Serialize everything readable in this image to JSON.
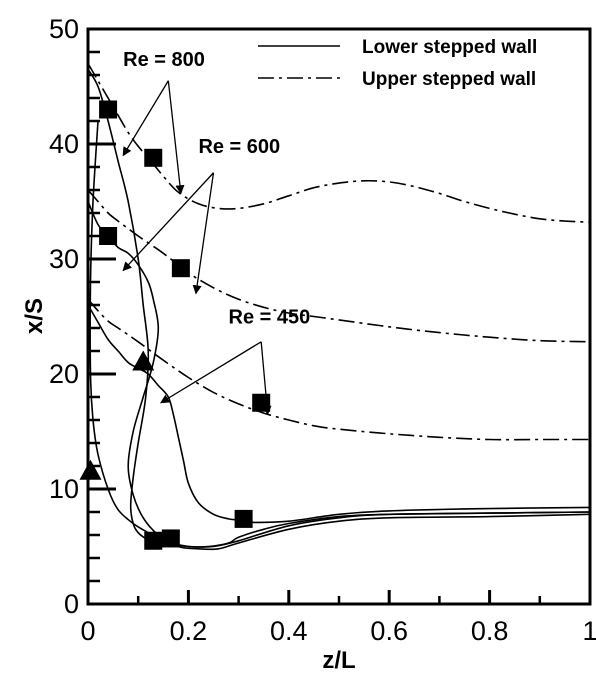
{
  "chart_data": {
    "type": "line",
    "xlabel": "z/L",
    "ylabel": "x/S",
    "xlim": [
      0,
      1
    ],
    "ylim": [
      0,
      50
    ],
    "x_ticks": [
      "0",
      "0.2",
      "0.4",
      "0.6",
      "0.8",
      "1"
    ],
    "y_ticks": [
      "0",
      "10",
      "20",
      "30",
      "40",
      "50"
    ],
    "legend": {
      "position": "top-right",
      "entries": [
        {
          "label": "Lower stepped wall",
          "style": "solid"
        },
        {
          "label": "Upper stepped wall",
          "style": "dash-dot"
        }
      ]
    },
    "series": [
      {
        "style": "solid",
        "group": "Re = 800",
        "x": [
          0.0,
          0.02,
          0.04,
          0.06,
          0.08,
          0.1,
          0.11,
          0.12,
          0.115,
          0.1,
          0.09,
          0.085,
          0.09,
          0.1,
          0.12,
          0.15,
          0.2,
          0.25,
          0.3,
          0.4,
          0.5,
          0.6,
          0.8,
          1.0
        ],
        "y": [
          46.5,
          45,
          42,
          38.5,
          35,
          30,
          26,
          22,
          18,
          14,
          11,
          8.5,
          7,
          6.2,
          5.6,
          5.3,
          5.0,
          5.0,
          5.5,
          6.8,
          7.5,
          7.8,
          7.9,
          8.0
        ]
      },
      {
        "style": "solid",
        "group": "Re = 600",
        "x": [
          0.0,
          0.02,
          0.04,
          0.06,
          0.08,
          0.1,
          0.12,
          0.13,
          0.14,
          0.13,
          0.11,
          0.09,
          0.08,
          0.09,
          0.11,
          0.14,
          0.18,
          0.22,
          0.26,
          0.3,
          0.4,
          0.5,
          0.6,
          0.8,
          1.0
        ],
        "y": [
          35,
          33,
          32,
          31,
          30.5,
          29.5,
          28,
          26.5,
          24,
          21,
          18,
          15,
          12,
          9.5,
          7.5,
          6.0,
          5.0,
          4.8,
          4.8,
          5.3,
          6.5,
          7.2,
          7.5,
          7.6,
          7.8
        ]
      },
      {
        "style": "solid",
        "group": "Re = 450",
        "x": [
          0.0,
          0.02,
          0.04,
          0.06,
          0.08,
          0.1,
          0.12,
          0.14,
          0.16,
          0.17,
          0.18,
          0.19,
          0.2,
          0.22,
          0.25,
          0.28,
          0.3,
          0.33,
          0.4,
          0.5,
          0.6,
          0.8,
          1.0
        ],
        "y": [
          26,
          24.5,
          23,
          22,
          21,
          20.5,
          20,
          19,
          18,
          16.5,
          14.5,
          12.5,
          10.5,
          8.8,
          7.8,
          7.4,
          7.3,
          7.1,
          7.2,
          7.8,
          8.1,
          8.3,
          8.4
        ]
      },
      {
        "style": "solid",
        "group": "",
        "x": [
          0.02,
          0.01,
          0.005,
          0.005,
          0.01,
          0.02,
          0.04,
          0.06,
          0.09,
          0.12,
          0.15,
          0.2,
          0.24,
          0.28,
          0.3,
          0.35,
          0.4,
          0.5,
          0.6,
          0.8,
          1.0
        ],
        "y": [
          42,
          35,
          28,
          20,
          16,
          13,
          10,
          8.2,
          7.0,
          6.2,
          5.5,
          5.0,
          5.0,
          5.3,
          5.8,
          6.5,
          7.0,
          7.6,
          7.8,
          7.9,
          8.0
        ]
      },
      {
        "style": "dash-dot",
        "group": "Re = 800",
        "x": [
          0.0,
          0.02,
          0.04,
          0.06,
          0.08,
          0.1,
          0.12,
          0.15,
          0.18,
          0.22,
          0.26,
          0.3,
          0.35,
          0.4,
          0.45,
          0.5,
          0.55,
          0.6,
          0.65,
          0.7,
          0.75,
          0.8,
          0.85,
          0.9,
          0.95,
          1.0
        ],
        "y": [
          47,
          45.5,
          44,
          42.5,
          41,
          39.8,
          38.8,
          37.2,
          35.8,
          34.8,
          34.4,
          34.4,
          34.8,
          35.5,
          36.2,
          36.6,
          36.8,
          36.7,
          36.3,
          35.7,
          35.0,
          34.4,
          33.9,
          33.5,
          33.3,
          33.2
        ]
      },
      {
        "style": "dash-dot",
        "group": "Re = 600",
        "x": [
          0.0,
          0.02,
          0.04,
          0.06,
          0.1,
          0.15,
          0.2,
          0.25,
          0.3,
          0.35,
          0.4,
          0.45,
          0.5,
          0.6,
          0.7,
          0.8,
          0.9,
          1.0
        ],
        "y": [
          36,
          35,
          34,
          33.3,
          32,
          30.5,
          28.8,
          27.5,
          26.5,
          25.8,
          25.3,
          25.0,
          24.7,
          24.1,
          23.6,
          23.2,
          22.9,
          22.8
        ]
      },
      {
        "style": "dash-dot",
        "group": "Re = 450",
        "x": [
          0.0,
          0.02,
          0.04,
          0.06,
          0.1,
          0.15,
          0.2,
          0.25,
          0.3,
          0.35,
          0.4,
          0.45,
          0.5,
          0.6,
          0.7,
          0.8,
          0.9,
          1.0
        ],
        "y": [
          26.5,
          25.5,
          24.6,
          24.0,
          22.8,
          21.2,
          19.7,
          18.4,
          17.4,
          16.6,
          16.0,
          15.5,
          15.2,
          14.8,
          14.5,
          14.3,
          14.3,
          14.3
        ]
      }
    ],
    "markers": [
      {
        "shape": "square",
        "x": 0.04,
        "y": 43
      },
      {
        "shape": "square",
        "x": 0.13,
        "y": 38.8
      },
      {
        "shape": "square",
        "x": 0.04,
        "y": 32
      },
      {
        "shape": "square",
        "x": 0.185,
        "y": 29.2
      },
      {
        "shape": "square",
        "x": 0.345,
        "y": 17.5
      },
      {
        "shape": "square",
        "x": 0.31,
        "y": 7.4
      },
      {
        "shape": "square",
        "x": 0.13,
        "y": 5.5
      },
      {
        "shape": "square",
        "x": 0.165,
        "y": 5.7
      },
      {
        "shape": "triangle",
        "x": 0.11,
        "y": 21
      },
      {
        "shape": "triangle",
        "x": 0.005,
        "y": 11.5
      }
    ],
    "annotations": [
      {
        "text": "Re = 800",
        "x": 0.07,
        "y": 46.8,
        "arrows": [
          {
            "from": [
              0.16,
              45.5
            ],
            "to": [
              0.07,
              39
            ]
          },
          {
            "from": [
              0.16,
              45.5
            ],
            "to": [
              0.185,
              35.7
            ]
          }
        ]
      },
      {
        "text": "Re = 600",
        "x": 0.22,
        "y": 39.2,
        "arrows": [
          {
            "from": [
              0.25,
              37.5
            ],
            "to": [
              0.07,
              29
            ]
          },
          {
            "from": [
              0.25,
              37.5
            ],
            "to": [
              0.215,
              27
            ]
          }
        ]
      },
      {
        "text": "Re = 450",
        "x": 0.28,
        "y": 24.4,
        "arrows": [
          {
            "from": [
              0.345,
              22.8
            ],
            "to": [
              0.145,
              17.5
            ]
          },
          {
            "from": [
              0.345,
              22.8
            ],
            "to": [
              0.358,
              16.5
            ]
          }
        ]
      }
    ]
  }
}
